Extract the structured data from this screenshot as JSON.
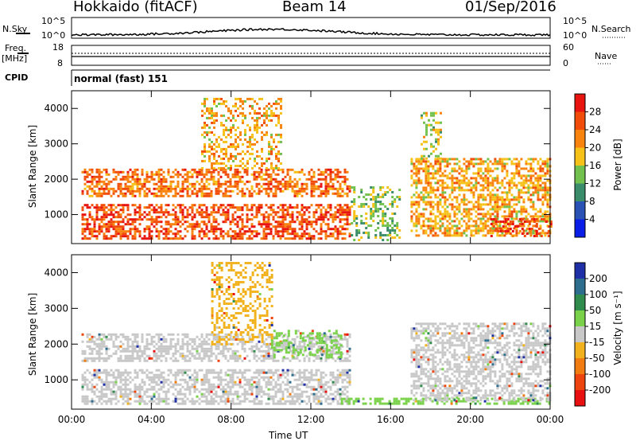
{
  "header": {
    "station": "Hokkaido (fitACF)",
    "beam": "Beam 14",
    "date": "01/Sep/2016"
  },
  "strips": {
    "nsky_label": "N.Sky",
    "nsky_ticks": [
      "10^5",
      "10^0"
    ],
    "nsearch_label": "N.Search",
    "nsearch_ticks": [
      "10^5",
      "10^0"
    ],
    "freq_label_1": "Freq.",
    "freq_label_2": "[MHz]",
    "freq_ticks": [
      "18",
      "8"
    ],
    "nave_label": "Nave",
    "nave_ticks": [
      "60",
      "0"
    ],
    "cpid_label": "CPID",
    "cpid_value": "normal (fast) 151"
  },
  "chart_data": [
    {
      "type": "heatmap",
      "panel": "power",
      "xlabel": "Time UT",
      "ylabel": "Slant Range [km]",
      "x_ticks": [
        "00:00",
        "04:00",
        "08:00",
        "12:00",
        "16:00",
        "20:00",
        "00:00"
      ],
      "y_ticks": [
        "4000",
        "3000",
        "2000",
        "1000"
      ],
      "xlim_hours": [
        0,
        24
      ],
      "ylim_km": [
        180,
        4500
      ],
      "colorbar_label": "Power [dB]",
      "colorbar_ticks": [
        "28",
        "24",
        "20",
        "16",
        "12",
        "8",
        "4"
      ],
      "colorbar_colors": [
        "#e8140f",
        "#f24c0a",
        "#f8840f",
        "#f6c21a",
        "#72c14e",
        "#3a8c6a",
        "#2a52b4",
        "#0a1ee8"
      ],
      "echo_regions": [
        {
          "t0": 0.5,
          "t1": 14.0,
          "r0": 300,
          "r1": 1300,
          "level_db": 24
        },
        {
          "t0": 0.5,
          "t1": 14.0,
          "r0": 1500,
          "r1": 2300,
          "level_db": 22
        },
        {
          "t0": 6.5,
          "t1": 10.5,
          "r0": 2300,
          "r1": 4300,
          "level_db": 18
        },
        {
          "t0": 14.0,
          "t1": 16.5,
          "r0": 300,
          "r1": 1800,
          "level_db": 12
        },
        {
          "t0": 17.0,
          "t1": 24.0,
          "r0": 400,
          "r1": 2600,
          "level_db": 18
        },
        {
          "t0": 17.5,
          "t1": 18.5,
          "r0": 2600,
          "r1": 3900,
          "level_db": 14
        },
        {
          "t0": 21.0,
          "t1": 24.0,
          "r0": 400,
          "r1": 900,
          "level_db": 26
        }
      ]
    },
    {
      "type": "heatmap",
      "panel": "velocity",
      "xlabel": "Time UT",
      "ylabel": "Slant Range [km]",
      "x_ticks": [
        "00:00",
        "04:00",
        "08:00",
        "12:00",
        "16:00",
        "20:00",
        "00:00"
      ],
      "y_ticks": [
        "4000",
        "3000",
        "2000",
        "1000"
      ],
      "xlim_hours": [
        0,
        24
      ],
      "ylim_km": [
        180,
        4500
      ],
      "colorbar_label": "Velocity [m s⁻¹]",
      "colorbar_ticks": [
        "200",
        "100",
        "50",
        "15",
        "-15",
        "-50",
        "-100",
        "-200"
      ],
      "colorbar_colors": [
        "#1f2fa6",
        "#2d6e8e",
        "#2f8c4c",
        "#7ad24a",
        "#c8c8c8",
        "#f2b21e",
        "#f07c12",
        "#ee4410",
        "#e81010"
      ],
      "echo_regions": [
        {
          "t0": 0.5,
          "t1": 14.0,
          "r0": 300,
          "r1": 1300,
          "velocity": 0
        },
        {
          "t0": 0.5,
          "t1": 14.0,
          "r0": 1500,
          "r1": 2300,
          "velocity": 0
        },
        {
          "t0": 7.0,
          "t1": 10.0,
          "r0": 2000,
          "r1": 4300,
          "velocity": -40
        },
        {
          "t0": 10.0,
          "t1": 13.5,
          "r0": 1600,
          "r1": 2400,
          "velocity": 40
        },
        {
          "t0": 13.5,
          "t1": 24.0,
          "r0": 300,
          "r1": 500,
          "velocity": 45
        },
        {
          "t0": 17.0,
          "t1": 24.0,
          "r0": 400,
          "r1": 2600,
          "velocity": 0
        }
      ]
    }
  ]
}
